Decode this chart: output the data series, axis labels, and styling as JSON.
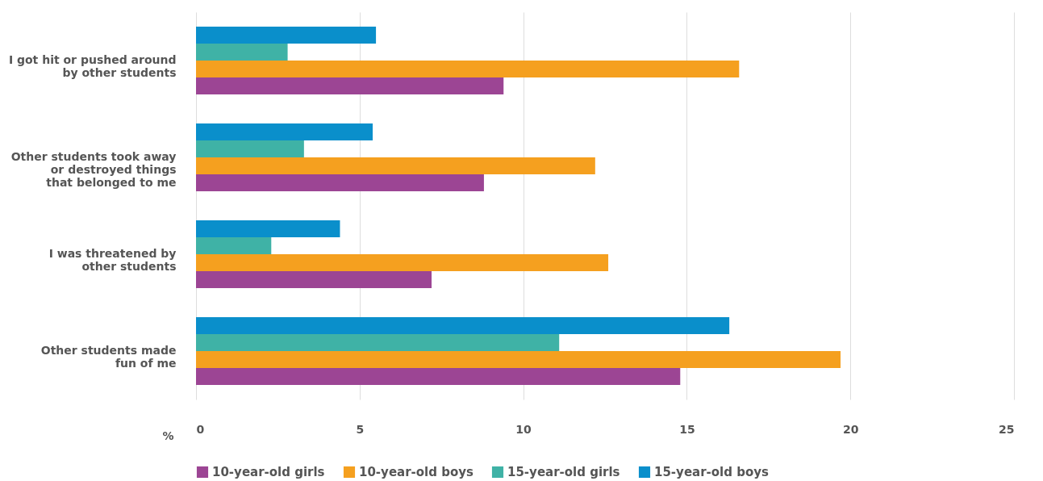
{
  "chart_data": {
    "type": "bar",
    "orientation": "horizontal",
    "xlabel": "%",
    "categories": [
      "I got hit or pushed around\nby other students",
      "Other students took away\nor destroyed things \nthat belonged to me",
      "I was threatened by\nother students",
      "Other students made\nfun of me"
    ],
    "series": [
      {
        "name": "10-year-old girls",
        "color": "#9c4594",
        "values": [
          9.4,
          8.8,
          7.2,
          14.8
        ]
      },
      {
        "name": "10-year-old boys",
        "color": "#f5a01f",
        "values": [
          16.6,
          12.2,
          12.6,
          19.7
        ]
      },
      {
        "name": "15-year-old girls",
        "color": "#3fb2a6",
        "values": [
          2.8,
          3.3,
          2.3,
          11.1
        ]
      },
      {
        "name": "15-year-old boys",
        "color": "#0a8fcb",
        "values": [
          5.5,
          5.4,
          4.4,
          16.3
        ]
      }
    ],
    "xlim": [
      0,
      25
    ],
    "xticks": [
      0,
      5,
      10,
      15,
      20,
      25
    ],
    "grid": "x",
    "legend": "bottom"
  }
}
